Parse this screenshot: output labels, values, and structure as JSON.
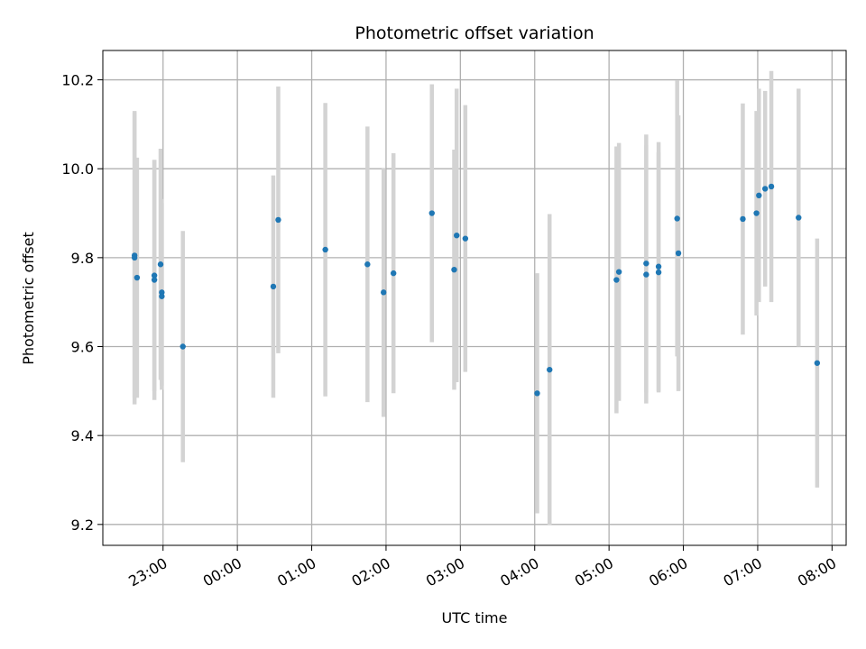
{
  "chart_data": {
    "type": "scatter",
    "title": "Photometric offset variation",
    "xlabel": "UTC time",
    "ylabel": "Photometric offset",
    "x_tick_labels": [
      "23:00",
      "00:00",
      "01:00",
      "02:00",
      "03:00",
      "04:00",
      "05:00",
      "06:00",
      "07:00",
      "08:00"
    ],
    "y_tick_labels": [
      "9.2",
      "9.4",
      "9.6",
      "9.8",
      "10.0",
      "10.2"
    ],
    "y_ticks": [
      9.2,
      9.4,
      9.6,
      9.8,
      10.0,
      10.2
    ],
    "xlim_hours": [
      -1.81,
      8.19
    ],
    "ylim": [
      9.153,
      10.266
    ],
    "grid": true,
    "colors": {
      "points": "#1f77b4",
      "errorbars": "#d3d3d3",
      "grid": "#b0b0b0"
    },
    "points": [
      {
        "t": "22:37",
        "y": 9.8,
        "err": 0.33
      },
      {
        "t": "22:37",
        "y": 9.805,
        "err": 0.32
      },
      {
        "t": "22:39",
        "y": 9.755,
        "err": 0.27
      },
      {
        "t": "22:53",
        "y": 9.76,
        "err": 0.26
      },
      {
        "t": "22:53",
        "y": 9.75,
        "err": 0.27
      },
      {
        "t": "22:58",
        "y": 9.785,
        "err": 0.26
      },
      {
        "t": "22:59",
        "y": 9.722,
        "err": 0.21
      },
      {
        "t": "22:59",
        "y": 9.713,
        "err": 0.21
      },
      {
        "t": "23:16",
        "y": 9.6,
        "err": 0.26
      },
      {
        "t": "00:29",
        "y": 9.735,
        "err": 0.25
      },
      {
        "t": "00:33",
        "y": 9.885,
        "err": 0.3
      },
      {
        "t": "01:11",
        "y": 9.818,
        "err": 0.33
      },
      {
        "t": "01:45",
        "y": 9.785,
        "err": 0.31
      },
      {
        "t": "01:58",
        "y": 9.722,
        "err": 0.28
      },
      {
        "t": "02:06",
        "y": 9.765,
        "err": 0.27
      },
      {
        "t": "02:37",
        "y": 9.9,
        "err": 0.29
      },
      {
        "t": "02:55",
        "y": 9.773,
        "err": 0.27
      },
      {
        "t": "02:57",
        "y": 9.85,
        "err": 0.33
      },
      {
        "t": "03:04",
        "y": 9.843,
        "err": 0.3
      },
      {
        "t": "04:02",
        "y": 9.495,
        "err": 0.27
      },
      {
        "t": "04:12",
        "y": 9.548,
        "err": 0.35
      },
      {
        "t": "05:06",
        "y": 9.75,
        "err": 0.3
      },
      {
        "t": "05:08",
        "y": 9.768,
        "err": 0.29
      },
      {
        "t": "05:30",
        "y": 9.787,
        "err": 0.29
      },
      {
        "t": "05:30",
        "y": 9.762,
        "err": 0.29
      },
      {
        "t": "05:40",
        "y": 9.78,
        "err": 0.28
      },
      {
        "t": "05:40",
        "y": 9.767,
        "err": 0.27
      },
      {
        "t": "05:55",
        "y": 9.888,
        "err": 0.31
      },
      {
        "t": "05:56",
        "y": 9.81,
        "err": 0.31
      },
      {
        "t": "06:48",
        "y": 9.887,
        "err": 0.26
      },
      {
        "t": "06:59",
        "y": 9.9,
        "err": 0.23
      },
      {
        "t": "07:01",
        "y": 9.94,
        "err": 0.24
      },
      {
        "t": "07:06",
        "y": 9.955,
        "err": 0.22
      },
      {
        "t": "07:11",
        "y": 9.96,
        "err": 0.26
      },
      {
        "t": "07:33",
        "y": 9.89,
        "err": 0.29
      },
      {
        "t": "07:48",
        "y": 9.563,
        "err": 0.28
      }
    ]
  }
}
